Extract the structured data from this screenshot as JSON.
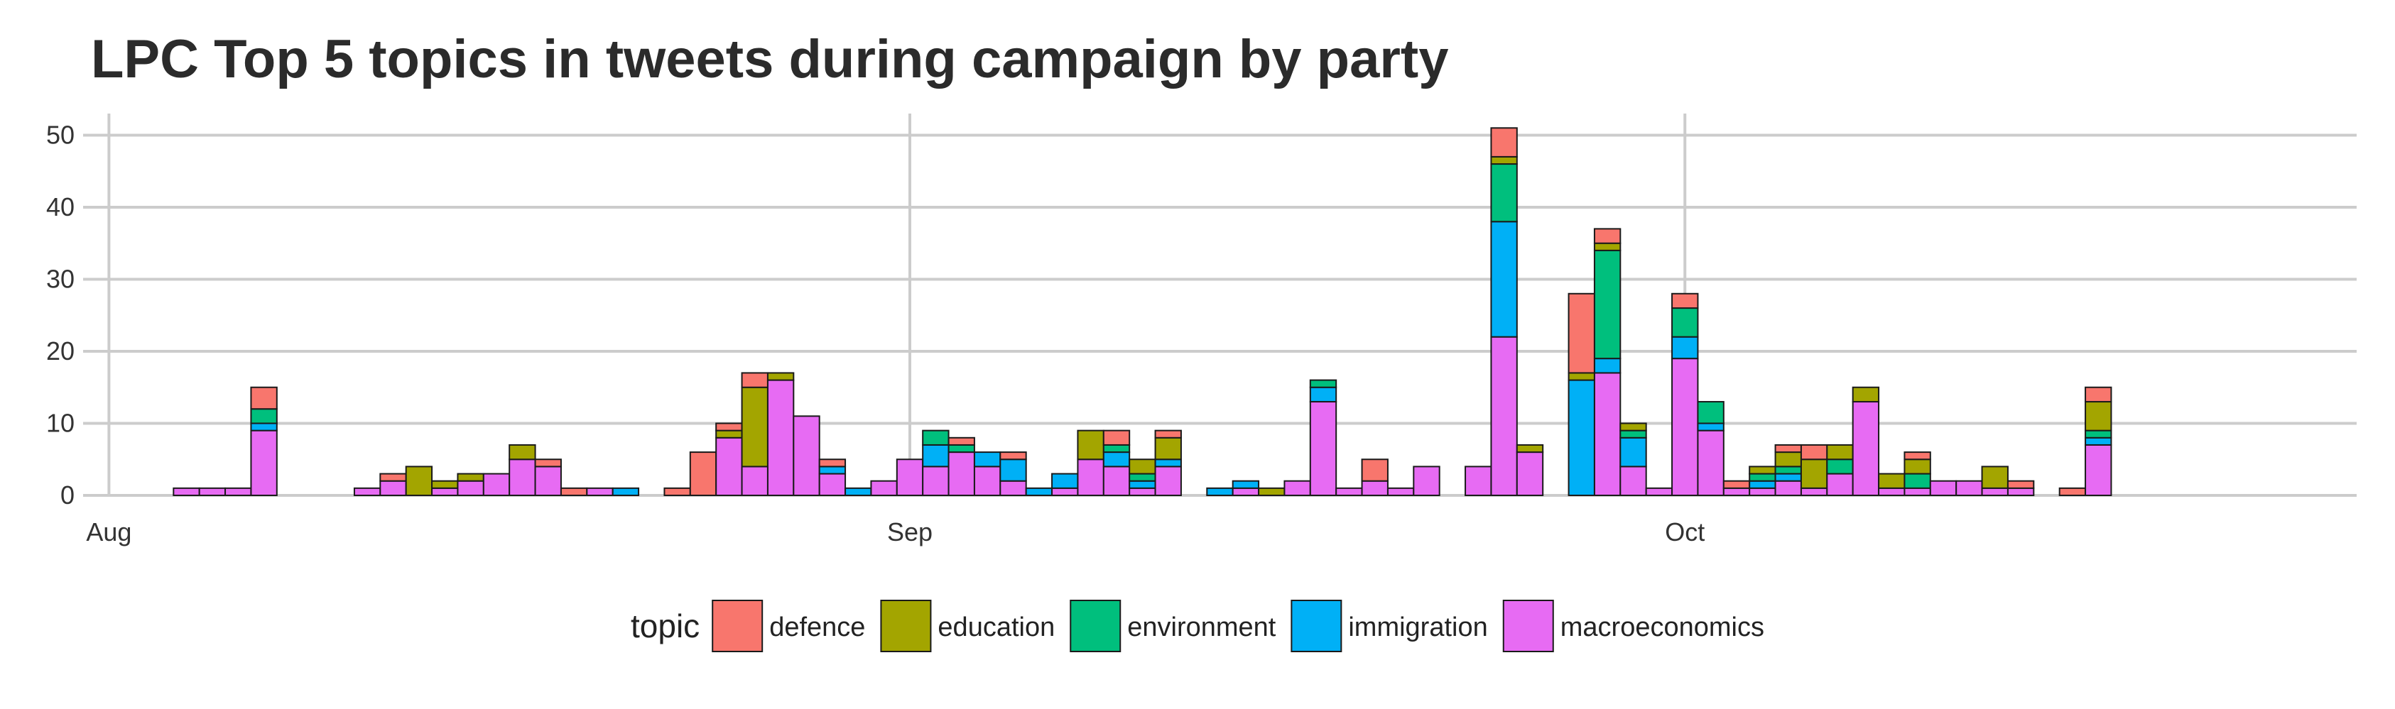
{
  "chart_data": {
    "type": "bar",
    "stacked": true,
    "title": "LPC Top 5 topics in tweets during campaign by party",
    "xlabel": "",
    "ylabel": "",
    "x_axis": {
      "type": "date",
      "range": [
        "2015-07-31",
        "2015-10-27"
      ],
      "ticks": [
        {
          "date": "2015-08-01",
          "label": "Aug"
        },
        {
          "date": "2015-09-01",
          "label": "Sep"
        },
        {
          "date": "2015-10-01",
          "label": "Oct"
        }
      ]
    },
    "ylim": [
      0,
      53
    ],
    "yticks": [
      0,
      10,
      20,
      30,
      40,
      50
    ],
    "grid": true,
    "legend": {
      "title": "topic",
      "position": "bottom"
    },
    "series": [
      {
        "name": "defence",
        "color": "#F8766D"
      },
      {
        "name": "education",
        "color": "#A3A500"
      },
      {
        "name": "environment",
        "color": "#00BF7D"
      },
      {
        "name": "immigration",
        "color": "#00B0F6"
      },
      {
        "name": "macroeconomics",
        "color": "#E76BF3"
      }
    ],
    "stack_order": [
      "macroeconomics",
      "immigration",
      "environment",
      "education",
      "defence"
    ],
    "data": [
      {
        "date": "2015-08-04",
        "macroeconomics": 1
      },
      {
        "date": "2015-08-05",
        "macroeconomics": 1
      },
      {
        "date": "2015-08-06",
        "macroeconomics": 1
      },
      {
        "date": "2015-08-07",
        "macroeconomics": 9,
        "immigration": 1,
        "environment": 2,
        "defence": 3
      },
      {
        "date": "2015-08-11",
        "macroeconomics": 1
      },
      {
        "date": "2015-08-12",
        "macroeconomics": 2,
        "defence": 1
      },
      {
        "date": "2015-08-13",
        "education": 4
      },
      {
        "date": "2015-08-14",
        "macroeconomics": 1,
        "education": 1
      },
      {
        "date": "2015-08-15",
        "macroeconomics": 2,
        "education": 1
      },
      {
        "date": "2015-08-16",
        "macroeconomics": 3
      },
      {
        "date": "2015-08-17",
        "macroeconomics": 5,
        "education": 2
      },
      {
        "date": "2015-08-18",
        "macroeconomics": 4,
        "defence": 1
      },
      {
        "date": "2015-08-19",
        "defence": 1
      },
      {
        "date": "2015-08-20",
        "macroeconomics": 1
      },
      {
        "date": "2015-08-21",
        "immigration": 1
      },
      {
        "date": "2015-08-23",
        "defence": 1
      },
      {
        "date": "2015-08-24",
        "defence": 6
      },
      {
        "date": "2015-08-25",
        "macroeconomics": 8,
        "education": 1,
        "defence": 1
      },
      {
        "date": "2015-08-26",
        "macroeconomics": 4,
        "education": 11,
        "defence": 2
      },
      {
        "date": "2015-08-27",
        "macroeconomics": 16,
        "education": 1
      },
      {
        "date": "2015-08-28",
        "macroeconomics": 11
      },
      {
        "date": "2015-08-29",
        "macroeconomics": 3,
        "immigration": 1,
        "defence": 1
      },
      {
        "date": "2015-08-30",
        "immigration": 1
      },
      {
        "date": "2015-08-31",
        "macroeconomics": 2
      },
      {
        "date": "2015-09-01",
        "macroeconomics": 5
      },
      {
        "date": "2015-09-02",
        "macroeconomics": 4,
        "immigration": 3,
        "environment": 2
      },
      {
        "date": "2015-09-03",
        "macroeconomics": 6,
        "environment": 1,
        "defence": 1
      },
      {
        "date": "2015-09-04",
        "macroeconomics": 4,
        "immigration": 2
      },
      {
        "date": "2015-09-05",
        "macroeconomics": 2,
        "immigration": 3,
        "defence": 1
      },
      {
        "date": "2015-09-06",
        "immigration": 1
      },
      {
        "date": "2015-09-07",
        "macroeconomics": 1,
        "immigration": 2
      },
      {
        "date": "2015-09-08",
        "macroeconomics": 5,
        "education": 4
      },
      {
        "date": "2015-09-09",
        "macroeconomics": 4,
        "immigration": 2,
        "environment": 1,
        "defence": 2
      },
      {
        "date": "2015-09-10",
        "macroeconomics": 1,
        "immigration": 1,
        "environment": 1,
        "education": 2
      },
      {
        "date": "2015-09-11",
        "macroeconomics": 4,
        "immigration": 1,
        "education": 3,
        "defence": 1
      },
      {
        "date": "2015-09-13",
        "immigration": 1
      },
      {
        "date": "2015-09-14",
        "macroeconomics": 1,
        "immigration": 1
      },
      {
        "date": "2015-09-15",
        "education": 1
      },
      {
        "date": "2015-09-16",
        "macroeconomics": 2
      },
      {
        "date": "2015-09-17",
        "macroeconomics": 13,
        "immigration": 2,
        "environment": 1
      },
      {
        "date": "2015-09-18",
        "macroeconomics": 1
      },
      {
        "date": "2015-09-19",
        "macroeconomics": 2,
        "defence": 3
      },
      {
        "date": "2015-09-20",
        "macroeconomics": 1
      },
      {
        "date": "2015-09-21",
        "macroeconomics": 4
      },
      {
        "date": "2015-09-23",
        "macroeconomics": 4
      },
      {
        "date": "2015-09-24",
        "macroeconomics": 22,
        "immigration": 16,
        "environment": 8,
        "education": 1,
        "defence": 4
      },
      {
        "date": "2015-09-25",
        "macroeconomics": 6,
        "education": 1
      },
      {
        "date": "2015-09-27",
        "immigration": 16,
        "education": 1,
        "defence": 11
      },
      {
        "date": "2015-09-28",
        "macroeconomics": 17,
        "immigration": 2,
        "environment": 15,
        "education": 1,
        "defence": 2
      },
      {
        "date": "2015-09-29",
        "macroeconomics": 4,
        "immigration": 4,
        "environment": 1,
        "education": 1
      },
      {
        "date": "2015-09-30",
        "macroeconomics": 1
      },
      {
        "date": "2015-10-01",
        "macroeconomics": 19,
        "immigration": 3,
        "environment": 4,
        "defence": 2
      },
      {
        "date": "2015-10-02",
        "macroeconomics": 9,
        "immigration": 1,
        "environment": 3
      },
      {
        "date": "2015-10-03",
        "macroeconomics": 1,
        "defence": 1
      },
      {
        "date": "2015-10-04",
        "macroeconomics": 1,
        "immigration": 1,
        "environment": 1,
        "education": 1
      },
      {
        "date": "2015-10-05",
        "macroeconomics": 2,
        "immigration": 1,
        "environment": 1,
        "education": 2,
        "defence": 1
      },
      {
        "date": "2015-10-06",
        "macroeconomics": 1,
        "education": 4,
        "defence": 2
      },
      {
        "date": "2015-10-07",
        "macroeconomics": 3,
        "environment": 2,
        "education": 2
      },
      {
        "date": "2015-10-08",
        "macroeconomics": 13,
        "education": 2
      },
      {
        "date": "2015-10-09",
        "macroeconomics": 1,
        "education": 2
      },
      {
        "date": "2015-10-10",
        "macroeconomics": 1,
        "environment": 2,
        "education": 2,
        "defence": 1
      },
      {
        "date": "2015-10-11",
        "macroeconomics": 2
      },
      {
        "date": "2015-10-12",
        "macroeconomics": 2
      },
      {
        "date": "2015-10-13",
        "macroeconomics": 1,
        "education": 3
      },
      {
        "date": "2015-10-14",
        "macroeconomics": 1,
        "defence": 1
      },
      {
        "date": "2015-10-16",
        "defence": 1
      },
      {
        "date": "2015-10-17",
        "macroeconomics": 7,
        "immigration": 1,
        "environment": 1,
        "education": 4,
        "defence": 2
      }
    ]
  }
}
